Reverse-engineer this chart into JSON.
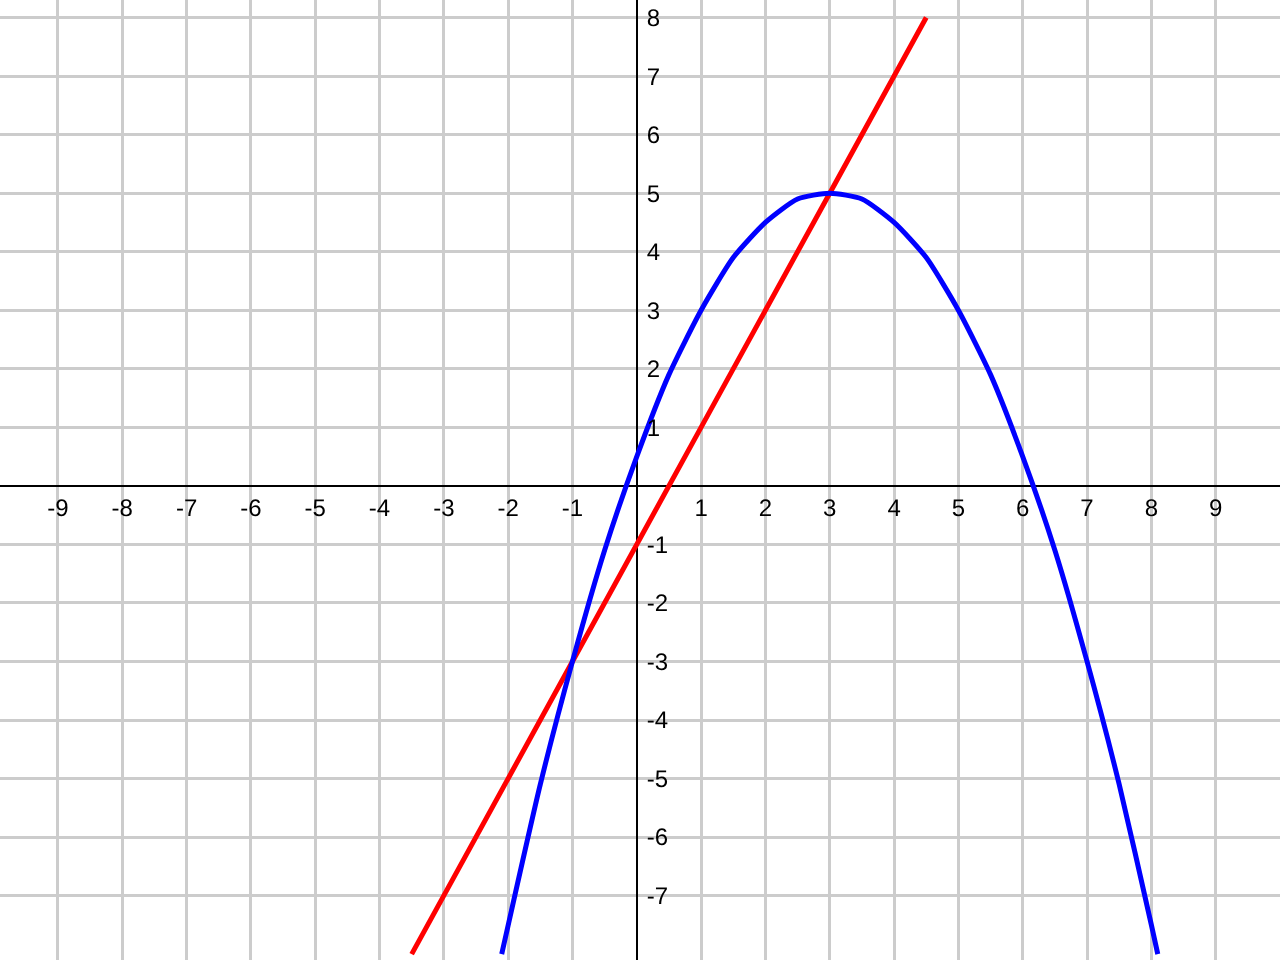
{
  "chart_data": {
    "type": "line",
    "series": [
      {
        "color": "#ff0000",
        "x": [
          -3.5,
          -1,
          3,
          4.5
        ],
        "values": [
          -8,
          -3,
          5,
          8
        ]
      },
      {
        "color": "#0000ff",
        "x": [
          -2.1,
          -1.5,
          -1,
          -0.5,
          0,
          0.5,
          1,
          1.5,
          2,
          2.5,
          3,
          3.5,
          4,
          4.5,
          5,
          5.5,
          6,
          6.5,
          7,
          7.5,
          8,
          8.1
        ],
        "values": [
          -8.0,
          -5.1,
          -3,
          -1.1,
          0.5,
          1.9,
          3,
          3.9,
          4.5,
          4.9,
          5,
          4.9,
          4.5,
          3.9,
          3,
          1.9,
          0.5,
          -1.1,
          -3,
          -5.1,
          -7.5,
          -8.0
        ]
      }
    ],
    "xlim": [
      -9.9,
      10
    ],
    "ylim": [
      -8.1,
      8.3
    ],
    "xticks": [
      -9,
      -8,
      -7,
      -6,
      -5,
      -4,
      -3,
      -2,
      -1,
      1,
      2,
      3,
      4,
      5,
      6,
      7,
      8,
      9
    ],
    "yticks": [
      -7,
      -6,
      -5,
      -4,
      -3,
      -2,
      -1,
      1,
      2,
      3,
      4,
      5,
      6,
      7,
      8
    ],
    "grid": true,
    "marker": "none",
    "line_style": "solid"
  }
}
